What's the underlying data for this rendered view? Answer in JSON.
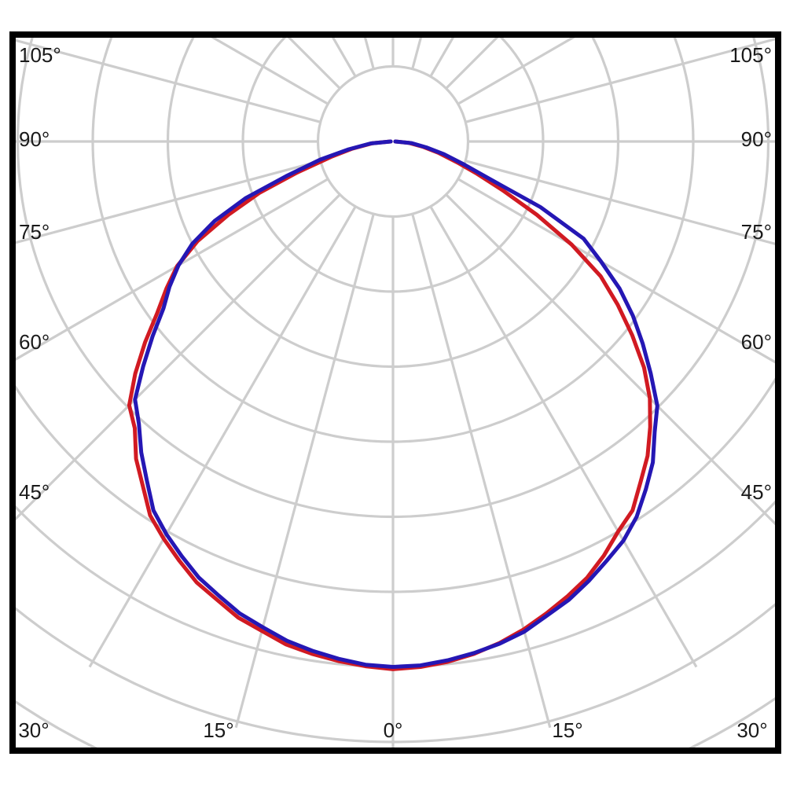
{
  "chart_data": {
    "type": "line",
    "subtype": "polar-photometric",
    "title": "",
    "description": "Luminous intensity distribution polar curve; angles measured from nadir (0 deg at bottom), two measurement-plane curves shown; radial grid rings are unlabeled relative intensity steps",
    "angle_zero": "bottom",
    "angle_step_deg": 15,
    "radial_axis": {
      "rings_visible": 9,
      "ring_value_step": 1,
      "ring_labels_shown": false
    },
    "angle_tick_labels": {
      "left": [
        "105°",
        "90°",
        "75°",
        "60°",
        "45°"
      ],
      "right": [
        "105°",
        "90°",
        "75°",
        "60°",
        "45°"
      ],
      "bottom": [
        "30°",
        "15°",
        "0°",
        "15°",
        "30°"
      ]
    },
    "legend_shown": false,
    "series": [
      {
        "name": "red-curve",
        "color": "#d11a22",
        "points": [
          [
            -90,
            0.03
          ],
          [
            -85,
            0.28
          ],
          [
            -80,
            0.55
          ],
          [
            -76,
            0.85
          ],
          [
            -72,
            1.35
          ],
          [
            -69,
            1.9
          ],
          [
            -66,
            2.4
          ],
          [
            -63,
            2.92
          ],
          [
            -60,
            3.32
          ],
          [
            -57,
            3.6
          ],
          [
            -54,
            3.88
          ],
          [
            -51,
            4.25
          ],
          [
            -48,
            4.62
          ],
          [
            -45,
            4.97
          ],
          [
            -42,
            5.14
          ],
          [
            -39,
            5.44
          ],
          [
            -36,
            5.67
          ],
          [
            -33,
            5.94
          ],
          [
            -30,
            6.11
          ],
          [
            -27,
            6.27
          ],
          [
            -24,
            6.43
          ],
          [
            -21,
            6.54
          ],
          [
            -18,
            6.67
          ],
          [
            -15,
            6.75
          ],
          [
            -12,
            6.85
          ],
          [
            -9,
            6.91
          ],
          [
            -6,
            6.96
          ],
          [
            -3,
            7.0
          ],
          [
            0,
            7.03
          ],
          [
            3,
            7.01
          ],
          [
            6,
            6.97
          ],
          [
            9,
            6.91
          ],
          [
            12,
            6.83
          ],
          [
            15,
            6.73
          ],
          [
            18,
            6.61
          ],
          [
            21,
            6.49
          ],
          [
            24,
            6.36
          ],
          [
            27,
            6.19
          ],
          [
            30,
            6.0
          ],
          [
            33,
            5.86
          ],
          [
            36,
            5.61
          ],
          [
            39,
            5.39
          ],
          [
            42,
            5.12
          ],
          [
            45,
            4.84
          ],
          [
            48,
            4.5
          ],
          [
            51,
            4.1
          ],
          [
            54,
            3.7
          ],
          [
            57,
            3.3
          ],
          [
            60,
            2.75
          ],
          [
            63,
            2.15
          ],
          [
            66,
            1.6
          ],
          [
            69,
            1.2
          ],
          [
            72,
            0.9
          ],
          [
            76,
            0.62
          ],
          [
            80,
            0.4
          ],
          [
            85,
            0.21
          ],
          [
            90,
            0.03
          ]
        ]
      },
      {
        "name": "blue-curve",
        "color": "#2517b4",
        "points": [
          [
            -90,
            0.03
          ],
          [
            -85,
            0.3
          ],
          [
            -80,
            0.6
          ],
          [
            -76,
            1.0
          ],
          [
            -72,
            1.5
          ],
          [
            -69,
            2.1
          ],
          [
            -66,
            2.6
          ],
          [
            -63,
            3.0
          ],
          [
            -60,
            3.3
          ],
          [
            -57,
            3.55
          ],
          [
            -54,
            3.78
          ],
          [
            -51,
            4.12
          ],
          [
            -48,
            4.48
          ],
          [
            -45,
            4.86
          ],
          [
            -42,
            5.06
          ],
          [
            -39,
            5.33
          ],
          [
            -36,
            5.58
          ],
          [
            -33,
            5.86
          ],
          [
            -30,
            6.04
          ],
          [
            -27,
            6.2
          ],
          [
            -24,
            6.36
          ],
          [
            -21,
            6.48
          ],
          [
            -18,
            6.61
          ],
          [
            -15,
            6.7
          ],
          [
            -12,
            6.8
          ],
          [
            -9,
            6.87
          ],
          [
            -6,
            6.93
          ],
          [
            -3,
            6.98
          ],
          [
            0,
            7.0
          ],
          [
            3,
            6.99
          ],
          [
            6,
            6.95
          ],
          [
            9,
            6.9
          ],
          [
            12,
            6.84
          ],
          [
            15,
            6.76
          ],
          [
            18,
            6.64
          ],
          [
            21,
            6.54
          ],
          [
            24,
            6.41
          ],
          [
            27,
            6.27
          ],
          [
            30,
            6.14
          ],
          [
            33,
            5.96
          ],
          [
            36,
            5.73
          ],
          [
            39,
            5.5
          ],
          [
            42,
            5.21
          ],
          [
            45,
            4.98
          ],
          [
            48,
            4.62
          ],
          [
            51,
            4.28
          ],
          [
            54,
            3.95
          ],
          [
            57,
            3.6
          ],
          [
            60,
            3.2
          ],
          [
            63,
            2.85
          ],
          [
            66,
            2.15
          ],
          [
            69,
            1.35
          ],
          [
            72,
            1.0
          ],
          [
            76,
            0.7
          ],
          [
            80,
            0.45
          ],
          [
            85,
            0.25
          ],
          [
            90,
            0.03
          ]
        ]
      }
    ]
  },
  "colors": {
    "background": "#ffffff",
    "grid": "#cdcdcd",
    "border": "#000000",
    "text": "#1a1a1a",
    "red_series": "#d11a22",
    "blue_series": "#2517b4"
  }
}
